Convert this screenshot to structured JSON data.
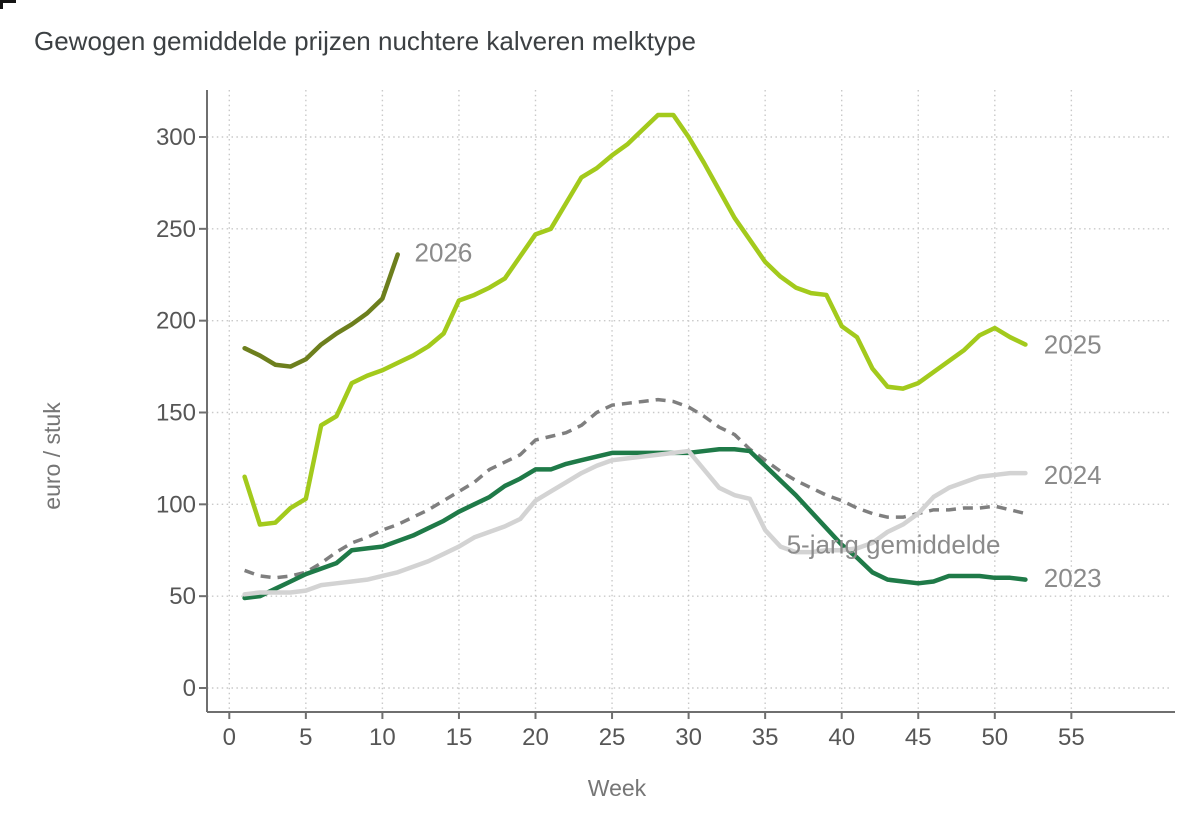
{
  "chart_data": {
    "type": "line",
    "title": "Gewogen gemiddelde prijzen nuchtere kalveren melktype",
    "xlabel": "Week",
    "ylabel": "euro / stuk",
    "x_ticks": [
      0,
      5,
      10,
      15,
      20,
      25,
      30,
      35,
      40,
      45,
      50,
      55
    ],
    "y_ticks": [
      0,
      50,
      100,
      150,
      200,
      250,
      300
    ],
    "xlim": [
      0,
      62
    ],
    "ylim": [
      -13,
      326
    ],
    "grid": true,
    "legend_position": "end-of-line-labels",
    "series_label_color": "#8b8b8b",
    "series": [
      {
        "name": "5-jarig gemiddelde",
        "color": "#7f7f7f",
        "line_style": "dashed",
        "x_start": 1,
        "values": [
          64,
          61,
          60,
          61,
          63,
          68,
          74,
          79,
          82,
          86,
          89,
          93,
          97,
          102,
          107,
          112,
          119,
          123,
          127,
          135,
          137,
          139,
          143,
          150,
          154,
          155,
          156,
          157,
          156,
          153,
          148,
          142,
          138,
          130,
          124,
          118,
          113,
          109,
          105,
          102,
          98,
          95,
          93,
          93,
          95,
          97,
          97,
          98,
          98,
          99,
          97,
          95
        ],
        "label": {
          "week": 36.4,
          "value": 78
        }
      },
      {
        "name": "2023",
        "color": "#1f7a48",
        "line_style": "solid",
        "x_start": 1,
        "values": [
          49,
          50,
          54,
          58,
          62,
          65,
          68,
          75,
          76,
          77,
          80,
          83,
          87,
          91,
          96,
          100,
          104,
          110,
          114,
          119,
          119,
          122,
          124,
          126,
          128,
          128,
          128,
          128,
          128,
          128,
          129,
          130,
          130,
          129,
          121,
          113,
          105,
          96,
          87,
          78,
          71,
          63,
          59,
          58,
          57,
          58,
          61,
          61,
          61,
          60,
          60,
          59
        ],
        "label": {
          "week": 53.2,
          "value": 60
        }
      },
      {
        "name": "2024",
        "color": "#d3d3d3",
        "line_style": "solid",
        "x_start": 1,
        "values": [
          51,
          52,
          52,
          52,
          53,
          56,
          57,
          58,
          59,
          61,
          63,
          66,
          69,
          73,
          77,
          82,
          85,
          88,
          92,
          102,
          107,
          112,
          117,
          121,
          124,
          125,
          126,
          127,
          128,
          129,
          119,
          109,
          105,
          103,
          86,
          77,
          74,
          74,
          75,
          75,
          76,
          79,
          85,
          89,
          95,
          104,
          109,
          112,
          115,
          116,
          117,
          117
        ],
        "label": {
          "week": 53.2,
          "value": 116
        }
      },
      {
        "name": "2025",
        "color": "#a3ca1c",
        "line_style": "solid",
        "x_start": 1,
        "values": [
          115,
          89,
          90,
          98,
          103,
          143,
          148,
          166,
          170,
          173,
          177,
          181,
          186,
          193,
          211,
          214,
          218,
          223,
          235,
          247,
          250,
          264,
          278,
          283,
          290,
          296,
          304,
          312,
          312,
          300,
          286,
          271,
          256,
          244,
          232,
          224,
          218,
          215,
          214,
          197,
          191,
          174,
          164,
          163,
          166,
          172,
          178,
          184,
          192,
          196,
          191,
          187
        ],
        "label": {
          "week": 53.2,
          "value": 187
        }
      },
      {
        "name": "2026",
        "color": "#6d7f1d",
        "line_style": "solid",
        "x_start": 1,
        "values": [
          185,
          181,
          176,
          175,
          179,
          187,
          193,
          198,
          204,
          212,
          236
        ],
        "label": {
          "week": 12.1,
          "value": 237
        }
      }
    ]
  }
}
